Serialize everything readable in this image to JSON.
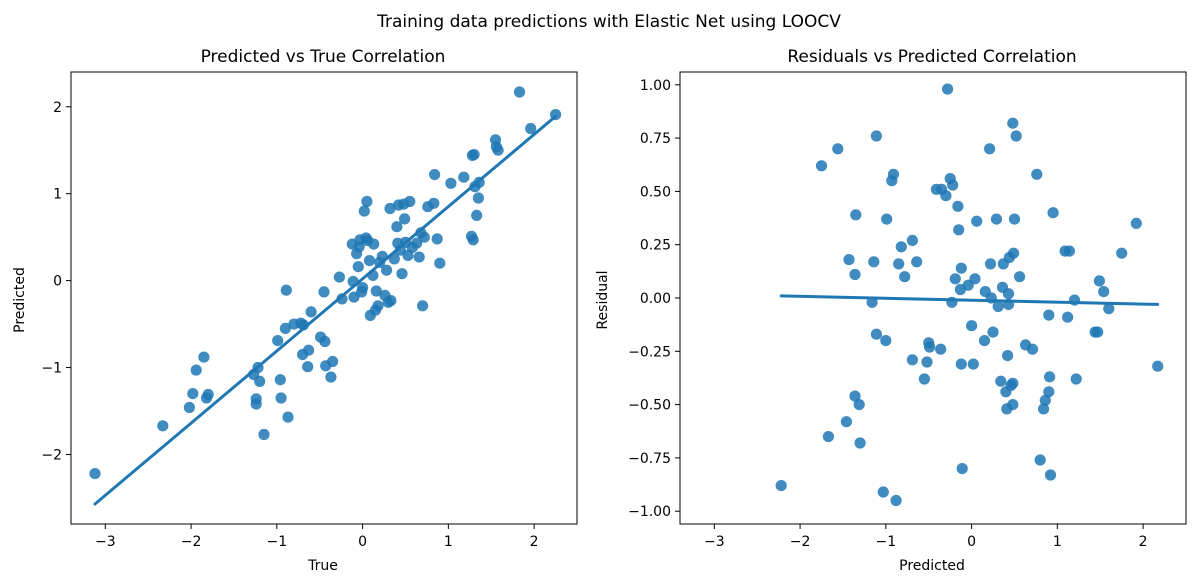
{
  "figure": {
    "suptitle": "Training data predictions with Elastic Net using LOOCV"
  },
  "colors": {
    "series": "#1f77b4",
    "axis": "#000000"
  },
  "chart_data": [
    {
      "type": "scatter",
      "title": "Predicted vs True Correlation",
      "xlabel": "True",
      "ylabel": "Predicted",
      "xlim": [
        -3.4,
        2.5
      ],
      "ylim": [
        -2.8,
        2.4
      ],
      "xticks": [
        -3,
        -2,
        -1,
        0,
        1,
        2
      ],
      "yticks": [
        -2,
        -1,
        0,
        1,
        2
      ],
      "grid": false,
      "regression_line": {
        "x": [
          -3.12,
          2.25
        ],
        "y": [
          -2.57,
          1.89
        ]
      },
      "points": [
        [
          -3.12,
          -2.22
        ],
        [
          -2.33,
          -1.67
        ],
        [
          -2.02,
          -1.46
        ],
        [
          -1.98,
          -1.3
        ],
        [
          -1.94,
          -1.03
        ],
        [
          -1.85,
          -0.88
        ],
        [
          -1.82,
          -1.35
        ],
        [
          -1.8,
          -1.31
        ],
        [
          -1.27,
          -1.08
        ],
        [
          -1.24,
          -1.36
        ],
        [
          -1.24,
          -1.42
        ],
        [
          -1.22,
          -1.0
        ],
        [
          -1.2,
          -1.16
        ],
        [
          -1.15,
          -1.77
        ],
        [
          -0.99,
          -0.69
        ],
        [
          -0.96,
          -1.14
        ],
        [
          -0.95,
          -1.35
        ],
        [
          -0.9,
          -0.55
        ],
        [
          -0.89,
          -0.11
        ],
        [
          -0.87,
          -1.57
        ],
        [
          -0.8,
          -0.5
        ],
        [
          -0.72,
          -0.49
        ],
        [
          -0.7,
          -0.85
        ],
        [
          -0.69,
          -0.51
        ],
        [
          -0.64,
          -0.99
        ],
        [
          -0.63,
          -0.8
        ],
        [
          -0.6,
          -0.36
        ],
        [
          -0.49,
          -0.65
        ],
        [
          -0.45,
          -0.13
        ],
        [
          -0.44,
          -0.7
        ],
        [
          -0.43,
          -0.98
        ],
        [
          -0.37,
          -1.11
        ],
        [
          -0.35,
          -0.93
        ],
        [
          -0.27,
          0.04
        ],
        [
          -0.24,
          -0.21
        ],
        [
          -0.12,
          0.42
        ],
        [
          -0.11,
          -0.01
        ],
        [
          -0.1,
          -0.19
        ],
        [
          -0.07,
          0.31
        ],
        [
          -0.05,
          0.16
        ],
        [
          -0.04,
          0.39
        ],
        [
          -0.03,
          0.47
        ],
        [
          -0.01,
          -0.13
        ],
        [
          0.0,
          -0.08
        ],
        [
          0.02,
          0.8
        ],
        [
          0.04,
          0.49
        ],
        [
          0.05,
          0.91
        ],
        [
          0.06,
          0.46
        ],
        [
          0.08,
          0.23
        ],
        [
          0.09,
          -0.4
        ],
        [
          0.12,
          0.06
        ],
        [
          0.13,
          0.42
        ],
        [
          0.15,
          -0.34
        ],
        [
          0.16,
          -0.12
        ],
        [
          0.18,
          -0.29
        ],
        [
          0.2,
          0.21
        ],
        [
          0.23,
          0.28
        ],
        [
          0.26,
          -0.17
        ],
        [
          0.28,
          0.12
        ],
        [
          0.3,
          -0.25
        ],
        [
          0.32,
          0.83
        ],
        [
          0.33,
          -0.23
        ],
        [
          0.37,
          0.25
        ],
        [
          0.4,
          0.62
        ],
        [
          0.41,
          0.43
        ],
        [
          0.42,
          0.87
        ],
        [
          0.44,
          0.35
        ],
        [
          0.46,
          0.08
        ],
        [
          0.48,
          0.88
        ],
        [
          0.49,
          0.71
        ],
        [
          0.5,
          0.44
        ],
        [
          0.53,
          0.29
        ],
        [
          0.55,
          0.91
        ],
        [
          0.58,
          0.38
        ],
        [
          0.63,
          0.43
        ],
        [
          0.66,
          0.27
        ],
        [
          0.68,
          0.55
        ],
        [
          0.7,
          -0.29
        ],
        [
          0.72,
          0.5
        ],
        [
          0.76,
          0.85
        ],
        [
          0.83,
          0.89
        ],
        [
          0.84,
          1.22
        ],
        [
          0.87,
          0.48
        ],
        [
          0.9,
          0.2
        ],
        [
          1.03,
          1.12
        ],
        [
          1.18,
          1.19
        ],
        [
          1.27,
          0.51
        ],
        [
          1.28,
          1.44
        ],
        [
          1.29,
          0.47
        ],
        [
          1.3,
          1.45
        ],
        [
          1.31,
          1.08
        ],
        [
          1.33,
          0.75
        ],
        [
          1.35,
          0.95
        ],
        [
          1.36,
          1.13
        ],
        [
          1.55,
          1.62
        ],
        [
          1.56,
          1.54
        ],
        [
          1.58,
          1.5
        ],
        [
          1.83,
          2.17
        ],
        [
          1.96,
          1.75
        ],
        [
          2.25,
          1.91
        ]
      ]
    },
    {
      "type": "scatter",
      "title": "Residuals vs Predicted Correlation",
      "xlabel": "Predicted",
      "ylabel": "Residual",
      "xlim": [
        -3.4,
        2.5
      ],
      "ylim": [
        -1.06,
        1.06
      ],
      "xticks": [
        -3,
        -2,
        -1,
        0,
        1,
        2
      ],
      "yticks": [
        1.0,
        0.75,
        0.5,
        0.25,
        0.0,
        -0.25,
        -0.5,
        -0.75,
        -1.0
      ],
      "ytick_labels": [
        "1.00",
        "0.75",
        "0.50",
        "0.25",
        "0.00",
        "−0.25",
        "−0.50",
        "−0.75",
        "−1.00"
      ],
      "grid": false,
      "regression_line": {
        "x": [
          -2.22,
          2.17
        ],
        "y": [
          0.01,
          -0.03
        ]
      },
      "points": [
        [
          -2.22,
          -0.88
        ],
        [
          -1.75,
          0.62
        ],
        [
          -1.67,
          -0.65
        ],
        [
          -1.56,
          0.7
        ],
        [
          -1.46,
          -0.58
        ],
        [
          -1.43,
          0.18
        ],
        [
          -1.36,
          -0.46
        ],
        [
          -1.36,
          0.11
        ],
        [
          -1.35,
          0.39
        ],
        [
          -1.31,
          -0.5
        ],
        [
          -1.3,
          -0.68
        ],
        [
          -1.16,
          -0.02
        ],
        [
          -1.14,
          0.17
        ],
        [
          -1.11,
          -0.17
        ],
        [
          -1.11,
          0.76
        ],
        [
          -1.03,
          -0.91
        ],
        [
          -1.0,
          -0.2
        ],
        [
          -0.99,
          0.37
        ],
        [
          -0.93,
          0.55
        ],
        [
          -0.91,
          0.58
        ],
        [
          -0.88,
          -0.95
        ],
        [
          -0.85,
          0.16
        ],
        [
          -0.82,
          0.24
        ],
        [
          -0.78,
          0.1
        ],
        [
          -0.69,
          -0.29
        ],
        [
          -0.69,
          0.27
        ],
        [
          -0.64,
          0.17
        ],
        [
          -0.55,
          -0.38
        ],
        [
          -0.52,
          -0.3
        ],
        [
          -0.5,
          -0.21
        ],
        [
          -0.49,
          -0.23
        ],
        [
          -0.41,
          0.51
        ],
        [
          -0.36,
          -0.24
        ],
        [
          -0.35,
          0.51
        ],
        [
          -0.3,
          0.48
        ],
        [
          -0.28,
          0.98
        ],
        [
          -0.25,
          0.56
        ],
        [
          -0.23,
          -0.02
        ],
        [
          -0.22,
          0.53
        ],
        [
          -0.19,
          0.09
        ],
        [
          -0.16,
          0.43
        ],
        [
          -0.15,
          0.32
        ],
        [
          -0.13,
          0.04
        ],
        [
          -0.12,
          0.14
        ],
        [
          -0.12,
          -0.31
        ],
        [
          -0.11,
          -0.8
        ],
        [
          -0.04,
          0.06
        ],
        [
          0.0,
          -0.13
        ],
        [
          0.02,
          -0.31
        ],
        [
          0.04,
          0.09
        ],
        [
          0.06,
          0.36
        ],
        [
          0.15,
          -0.2
        ],
        [
          0.16,
          0.03
        ],
        [
          0.21,
          0.7
        ],
        [
          0.22,
          0.16
        ],
        [
          0.23,
          0.0
        ],
        [
          0.25,
          -0.16
        ],
        [
          0.29,
          0.37
        ],
        [
          0.31,
          -0.04
        ],
        [
          0.34,
          -0.39
        ],
        [
          0.36,
          0.05
        ],
        [
          0.37,
          0.16
        ],
        [
          0.4,
          -0.44
        ],
        [
          0.41,
          -0.52
        ],
        [
          0.42,
          -0.27
        ],
        [
          0.43,
          0.02
        ],
        [
          0.43,
          -0.03
        ],
        [
          0.44,
          0.19
        ],
        [
          0.46,
          -0.41
        ],
        [
          0.48,
          -0.5
        ],
        [
          0.48,
          -0.4
        ],
        [
          0.48,
          0.82
        ],
        [
          0.49,
          0.21
        ],
        [
          0.5,
          0.37
        ],
        [
          0.52,
          0.76
        ],
        [
          0.56,
          0.1
        ],
        [
          0.63,
          -0.22
        ],
        [
          0.71,
          -0.24
        ],
        [
          0.76,
          0.58
        ],
        [
          0.8,
          -0.76
        ],
        [
          0.84,
          -0.52
        ],
        [
          0.86,
          -0.48
        ],
        [
          0.9,
          -0.08
        ],
        [
          0.9,
          -0.44
        ],
        [
          0.91,
          -0.37
        ],
        [
          0.92,
          -0.83
        ],
        [
          0.95,
          0.4
        ],
        [
          1.09,
          0.22
        ],
        [
          1.12,
          -0.09
        ],
        [
          1.14,
          0.22
        ],
        [
          1.2,
          -0.01
        ],
        [
          1.22,
          -0.38
        ],
        [
          1.44,
          -0.16
        ],
        [
          1.47,
          -0.16
        ],
        [
          1.49,
          0.08
        ],
        [
          1.54,
          0.03
        ],
        [
          1.6,
          -0.05
        ],
        [
          1.75,
          0.21
        ],
        [
          1.92,
          0.35
        ],
        [
          2.17,
          -0.32
        ]
      ]
    }
  ]
}
